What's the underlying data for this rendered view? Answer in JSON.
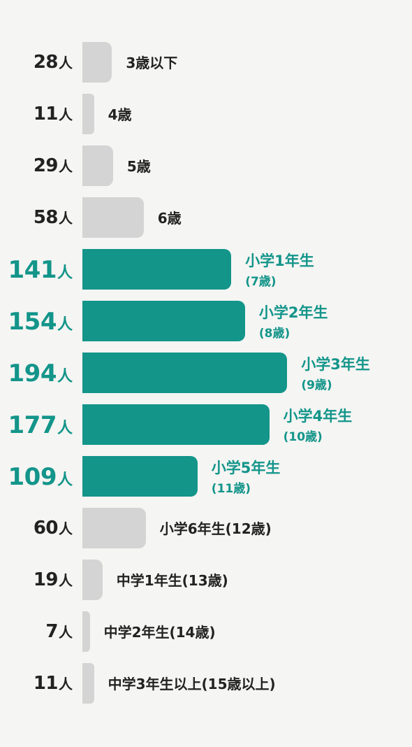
{
  "chart_data": {
    "type": "bar",
    "orientation": "horizontal",
    "colors": {
      "highlight": "#13958a",
      "normal": "#d4d4d4",
      "text": "#222222"
    },
    "rows": [
      {
        "value": 28,
        "number": "28",
        "unit": "人",
        "label": "3歳以下",
        "highlight": false
      },
      {
        "value": 11,
        "number": "11",
        "unit": "人",
        "label": "4歳",
        "highlight": false
      },
      {
        "value": 29,
        "number": "29",
        "unit": "人",
        "label": "5歳",
        "highlight": false
      },
      {
        "value": 58,
        "number": "58",
        "unit": "人",
        "label": "6歳",
        "highlight": false
      },
      {
        "value": 141,
        "number": "141",
        "unit": "人",
        "label": "小学1年生",
        "sublabel": "(7歳)",
        "highlight": true
      },
      {
        "value": 154,
        "number": "154",
        "unit": "人",
        "label": "小学2年生",
        "sublabel": "(8歳)",
        "highlight": true
      },
      {
        "value": 194,
        "number": "194",
        "unit": "人",
        "label": "小学3年生",
        "sublabel": "(9歳)",
        "highlight": true
      },
      {
        "value": 177,
        "number": "177",
        "unit": "人",
        "label": "小学4年生",
        "sublabel": "(10歳)",
        "highlight": true
      },
      {
        "value": 109,
        "number": "109",
        "unit": "人",
        "label": "小学5年生",
        "sublabel": "(11歳)",
        "highlight": true
      },
      {
        "value": 60,
        "number": "60",
        "unit": "人",
        "label": "小学6年生(12歳)",
        "highlight": false
      },
      {
        "value": 19,
        "number": "19",
        "unit": "人",
        "label": "中学1年生(13歳)",
        "highlight": false
      },
      {
        "value": 7,
        "number": "7",
        "unit": "人",
        "label": "中学2年生(14歳)",
        "highlight": false
      },
      {
        "value": 11,
        "number": "11",
        "unit": "人",
        "label": "中学3年生以上(15歳以上)",
        "highlight": false
      }
    ]
  }
}
